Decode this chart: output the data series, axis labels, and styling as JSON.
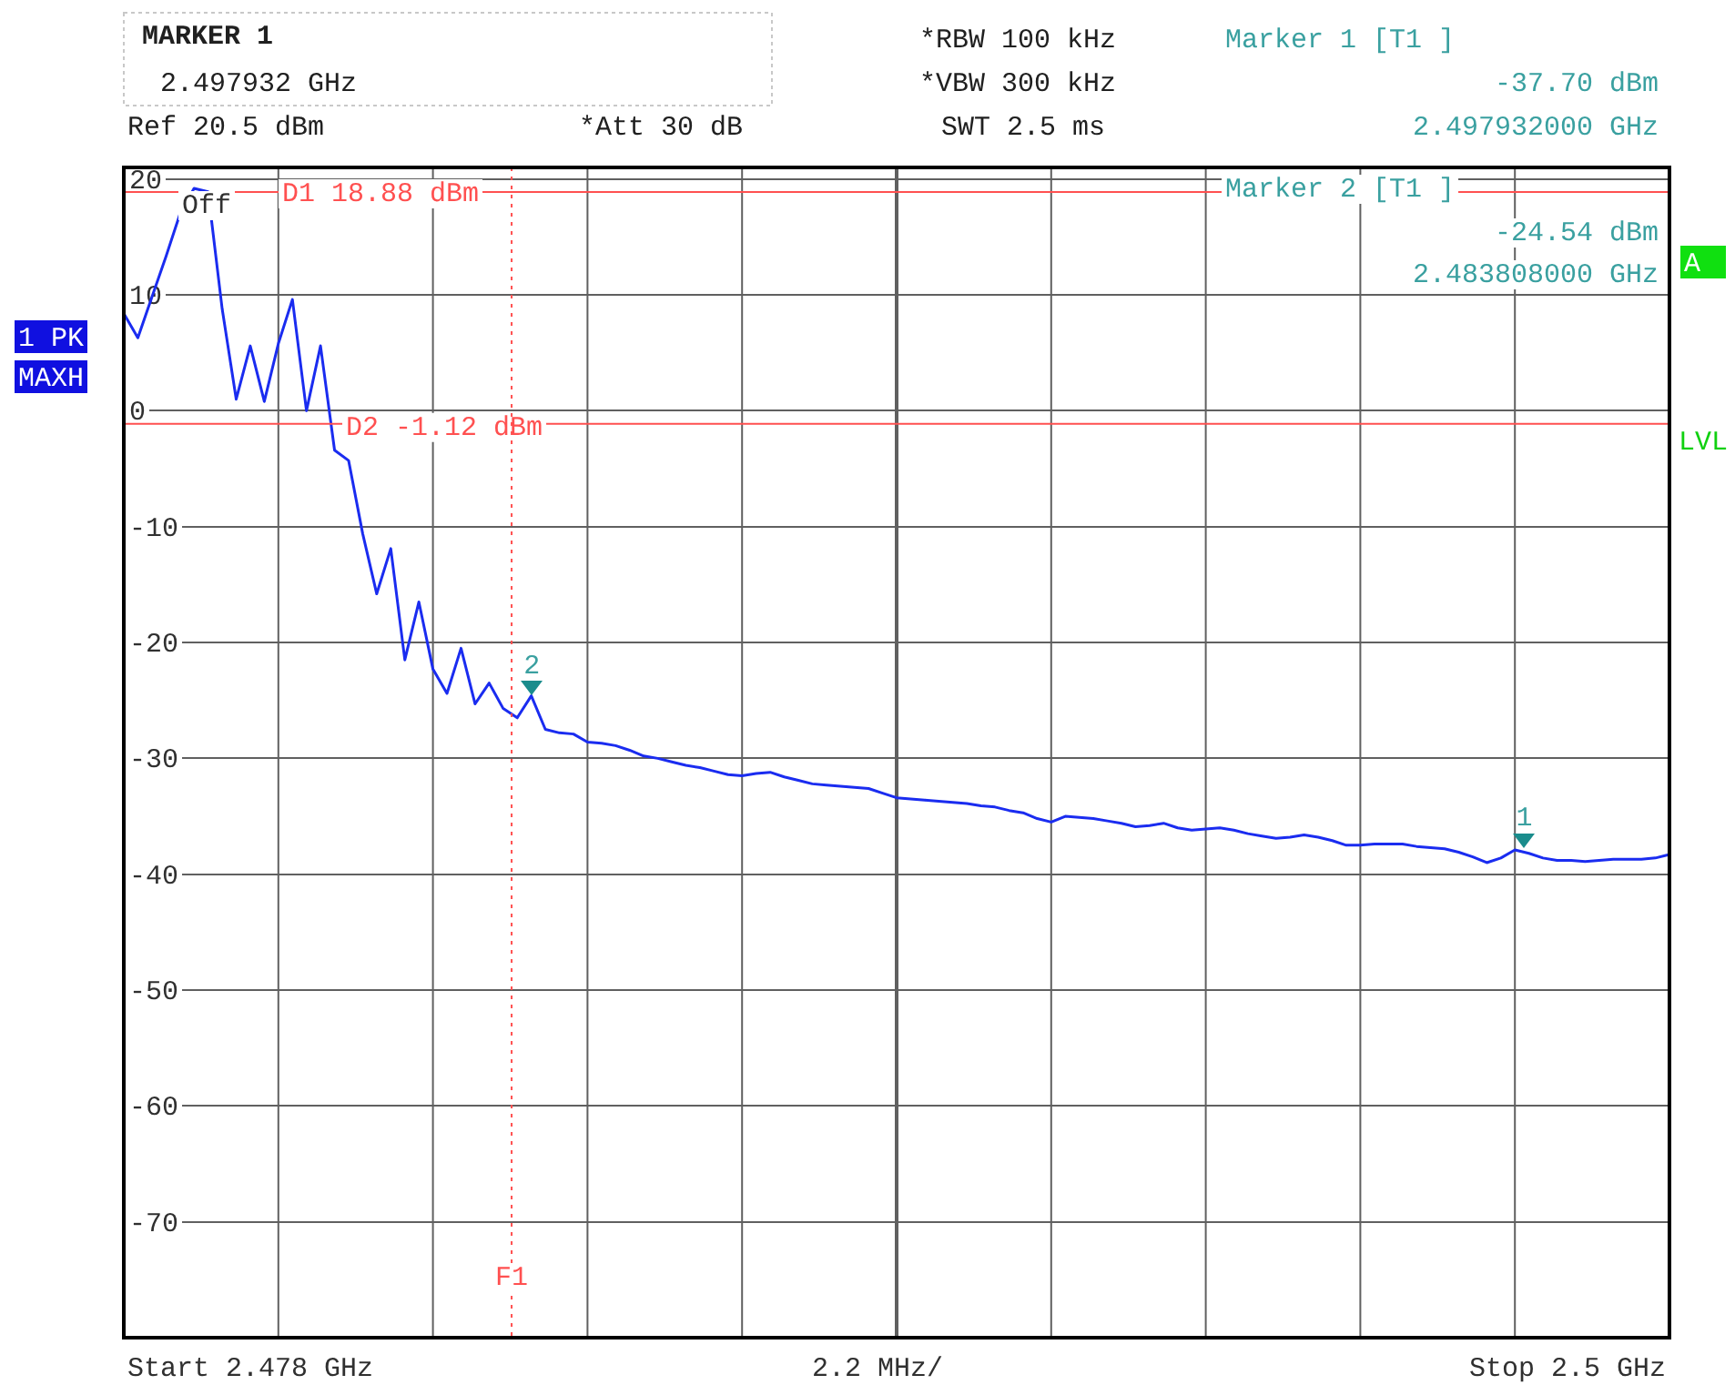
{
  "chart_data": {
    "type": "line",
    "categories": [
      null,
      null,
      null,
      null,
      null,
      null,
      null,
      null,
      null,
      null,
      null,
      null,
      null,
      null,
      null,
      null,
      null,
      null,
      null,
      null,
      null,
      null,
      null,
      null,
      null,
      null,
      null,
      null,
      null,
      null,
      null,
      null,
      null,
      null,
      null,
      null,
      null,
      null,
      null,
      null,
      null,
      null,
      null,
      null,
      null,
      null,
      null,
      null,
      null,
      null,
      null,
      null,
      null,
      null,
      null,
      null,
      null,
      null,
      null,
      null,
      null,
      null,
      null,
      null,
      null,
      null,
      null,
      null,
      null,
      null,
      null,
      null,
      null,
      null,
      null,
      null,
      null,
      null,
      null,
      null,
      null,
      null,
      null,
      null,
      null,
      null,
      null,
      null,
      null,
      null,
      null,
      null,
      null,
      null,
      null,
      null,
      null,
      null,
      null,
      null,
      null,
      null,
      null,
      null,
      null,
      null,
      null,
      null,
      null,
      null,
      null
    ],
    "ylim": [
      -80,
      21
    ],
    "yticks": [
      -70,
      -60,
      -50,
      -40,
      -30,
      -20,
      -10,
      0,
      10,
      20
    ],
    "tick_labels": "y",
    "grid": true,
    "legend": false,
    "marker": "none",
    "series": [
      {
        "color": "#1a2cf0",
        "values": [
          8.4,
          6.3,
          9.8,
          13.3,
          17,
          19.2,
          18.9,
          8.8,
          1,
          5.6,
          0.8,
          5.8,
          9.6,
          0,
          5.6,
          -3.4,
          -4.3,
          -10.6,
          -15.8,
          -11.9,
          -21.5,
          -16.5,
          -22.3,
          -24.4,
          -20.5,
          -25.3,
          -23.5,
          -25.7,
          -26.5,
          -24.6,
          -27.5,
          -27.8,
          -27.9,
          -28.6,
          -28.7,
          -28.9,
          -29.3,
          -29.8,
          -30,
          -30.3,
          -30.6,
          -30.8,
          -31.1,
          -31.4,
          -31.5,
          -31.3,
          -31.2,
          -31.6,
          -31.9,
          -32.2,
          -32.3,
          -32.4,
          -32.5,
          -32.6,
          -33,
          -33.4,
          -33.5,
          -33.6,
          -33.7,
          -33.8,
          -33.9,
          -34.1,
          -34.2,
          -34.5,
          -34.7,
          -35.2,
          -35.5,
          -35,
          -35.1,
          -35.2,
          -35.4,
          -35.6,
          -35.9,
          -35.8,
          -35.6,
          -36,
          -36.2,
          -36.1,
          -36,
          -36.2,
          -36.5,
          -36.7,
          -36.9,
          -36.8,
          -36.6,
          -36.8,
          -37.1,
          -37.5,
          -37.5,
          -37.4,
          -37.4,
          -37.4,
          -37.6,
          -37.7,
          -37.8,
          -38.1,
          -38.5,
          -39,
          -38.6,
          -37.9,
          -38.2,
          -38.6,
          -38.8,
          -38.8,
          -38.9,
          -38.8,
          -38.7,
          -38.7,
          -38.7,
          -38.6,
          -38.3
        ]
      }
    ],
    "ref_lines": [
      {
        "axis": "y",
        "value": 18.88,
        "label": "D1 18.88 dBm",
        "color": "#ff5050",
        "line_style": "solid"
      },
      {
        "axis": "y",
        "value": -1.12,
        "label": "D2 -1.12 dBm",
        "color": "#ff5050",
        "line_style": "solid"
      },
      {
        "axis": "x",
        "label": "F1",
        "color": "#ff5050",
        "line_style": "dotted"
      }
    ],
    "annotations": [
      "MARKER 1",
      "2.497932 GHz",
      "Ref 20.5 dBm",
      "*Att 30 dB",
      "*RBW 100 kHz",
      "*VBW 300 kHz",
      "SWT 2.5 ms",
      "Marker 1 [T1 ]",
      "-37.70 dBm",
      "2.497932000 GHz",
      "Marker 2 [T1 ]",
      "-24.54 dBm",
      "2.483808000 GHz",
      "Off",
      "1 PK",
      "MAXH",
      "A",
      "LVL",
      "Start 2.478 GHz",
      "2.2 MHz/",
      "Stop 2.5 GHz",
      {
        "text": "2",
        "y": -24.54
      },
      {
        "text": "1",
        "y": -37.7
      }
    ]
  }
}
